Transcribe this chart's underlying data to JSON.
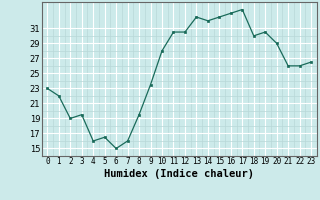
{
  "x": [
    0,
    1,
    2,
    3,
    4,
    5,
    6,
    7,
    8,
    9,
    10,
    11,
    12,
    13,
    14,
    15,
    16,
    17,
    18,
    19,
    20,
    21,
    22,
    23
  ],
  "y": [
    23,
    22,
    19,
    19.5,
    16,
    16.5,
    15,
    16,
    19.5,
    23.5,
    28,
    30.5,
    30.5,
    32.5,
    32,
    32.5,
    33,
    33.5,
    30,
    30.5,
    29,
    26,
    26,
    26.5
  ],
  "line_color": "#1a6b5a",
  "marker_color": "#1a6b5a",
  "bg_color": "#cceaea",
  "grid_major_color": "#ffffff",
  "grid_minor_color": "#b8d8d8",
  "xlabel": "Humidex (Indice chaleur)",
  "yticks": [
    15,
    17,
    19,
    21,
    23,
    25,
    27,
    29,
    31
  ],
  "xticks": [
    0,
    1,
    2,
    3,
    4,
    5,
    6,
    7,
    8,
    9,
    10,
    11,
    12,
    13,
    14,
    15,
    16,
    17,
    18,
    19,
    20,
    21,
    22,
    23
  ],
  "ylim": [
    14.0,
    34.5
  ],
  "xlim": [
    -0.5,
    23.5
  ]
}
